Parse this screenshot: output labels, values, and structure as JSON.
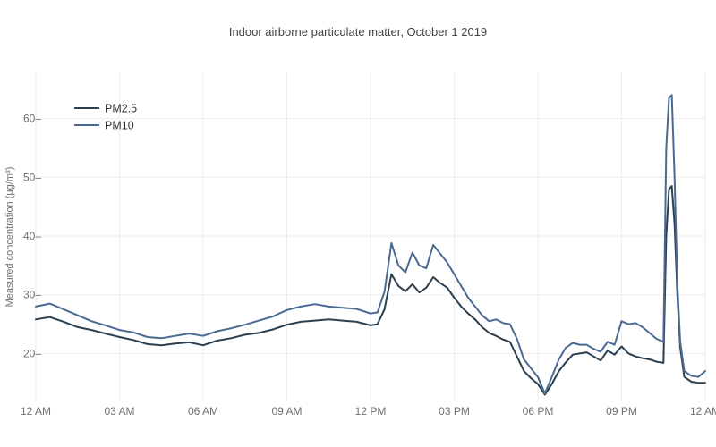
{
  "chart_data": {
    "type": "line",
    "title": "Indoor airborne particulate matter, October 1 2019",
    "xlabel": "",
    "ylabel": "Measured concentration (µg/m³)",
    "x_tick_labels": [
      "12 AM",
      "03 AM",
      "06 AM",
      "09 AM",
      "12 PM",
      "03 PM",
      "06 PM",
      "09 PM",
      "12 AM"
    ],
    "x_ticks_hours": [
      0,
      3,
      6,
      9,
      12,
      15,
      18,
      21,
      24
    ],
    "y_tick_values": [
      20,
      30,
      40,
      50,
      60
    ],
    "y_tick_labels": [
      "20–",
      "30–",
      "40–",
      "50–",
      "60–"
    ],
    "xlim_hours": [
      0,
      24
    ],
    "ylim": [
      12,
      68
    ],
    "grid": true,
    "legend_position": "top-left",
    "x_hours": [
      0,
      0.5,
      1,
      1.5,
      2,
      2.5,
      3,
      3.5,
      4,
      4.5,
      5,
      5.5,
      6,
      6.5,
      7,
      7.5,
      8,
      8.5,
      9,
      9.5,
      10,
      10.5,
      11,
      11.5,
      12,
      12.25,
      12.5,
      12.75,
      13,
      13.25,
      13.5,
      13.75,
      14,
      14.25,
      14.5,
      14.75,
      15,
      15.25,
      15.5,
      15.75,
      16,
      16.25,
      16.5,
      16.75,
      17,
      17.25,
      17.5,
      17.75,
      18,
      18.25,
      18.5,
      18.75,
      19,
      19.25,
      19.5,
      19.75,
      20,
      20.25,
      20.5,
      20.75,
      21,
      21.25,
      21.5,
      21.75,
      22,
      22.25,
      22.5,
      22.6,
      22.7,
      22.8,
      22.9,
      23,
      23.1,
      23.25,
      23.5,
      23.75,
      24
    ],
    "series": [
      {
        "name": "PM2.5",
        "color": "#2a3f4f",
        "values": [
          25.8,
          26.2,
          25.4,
          24.5,
          24.0,
          23.4,
          22.8,
          22.3,
          21.6,
          21.4,
          21.7,
          21.9,
          21.4,
          22.2,
          22.6,
          23.2,
          23.5,
          24.1,
          24.9,
          25.4,
          25.6,
          25.8,
          25.6,
          25.4,
          24.8,
          25.0,
          27.5,
          33.5,
          31.5,
          30.6,
          31.8,
          30.4,
          31.2,
          33.0,
          32.0,
          31.2,
          29.5,
          28.0,
          26.8,
          25.8,
          24.5,
          23.5,
          23.0,
          22.4,
          22.0,
          19.5,
          17.0,
          15.8,
          14.8,
          13.0,
          14.8,
          17.0,
          18.5,
          19.8,
          20.0,
          20.2,
          19.5,
          18.8,
          20.5,
          19.8,
          21.2,
          20.0,
          19.5,
          19.2,
          19.0,
          18.6,
          18.4,
          40.0,
          48.0,
          48.5,
          42.0,
          30.0,
          21.0,
          16.0,
          15.2,
          15.0,
          15.0
        ]
      },
      {
        "name": "PM10",
        "color": "#4a6a93",
        "values": [
          28.0,
          28.5,
          27.5,
          26.5,
          25.5,
          24.8,
          24.0,
          23.6,
          22.8,
          22.6,
          23.0,
          23.4,
          23.0,
          23.8,
          24.3,
          24.9,
          25.6,
          26.3,
          27.4,
          28.0,
          28.4,
          28.0,
          27.8,
          27.6,
          26.8,
          27.0,
          30.5,
          38.8,
          35.0,
          33.8,
          37.2,
          35.0,
          34.5,
          38.5,
          37.0,
          35.5,
          33.5,
          31.5,
          29.5,
          28.0,
          26.5,
          25.5,
          25.8,
          25.2,
          25.0,
          22.5,
          19.0,
          17.5,
          16.0,
          13.2,
          16.0,
          19.0,
          21.0,
          21.8,
          21.5,
          21.5,
          20.8,
          20.3,
          22.0,
          21.5,
          25.5,
          25.0,
          25.2,
          24.5,
          23.5,
          22.5,
          22.0,
          55.0,
          63.5,
          64.0,
          50.0,
          32.0,
          22.0,
          17.0,
          16.2,
          16.0,
          17.0
        ]
      }
    ]
  }
}
